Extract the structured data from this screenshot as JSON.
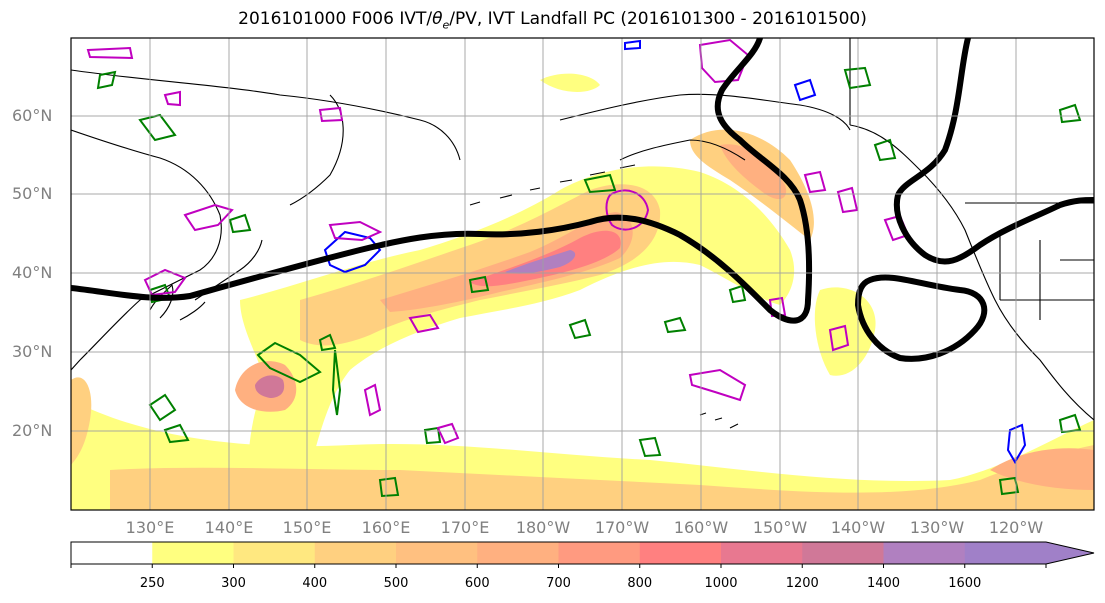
{
  "title_text": "2016101000 F006 IVT/θe/PV, IVT Landfall PC (2016101300 - 2016101500)",
  "title_parts": {
    "prefix": "2016101000 F006 IVT/",
    "theta": "θ",
    "theta_sub": "e",
    "suffix": "/PV, IVT Landfall PC (2016101300 - 2016101500)"
  },
  "map": {
    "projection": "equirectangular",
    "lon_range": [
      120,
      250
    ],
    "lat_range": [
      10,
      70
    ],
    "lat_ticks": [
      "60°N",
      "50°N",
      "40°N",
      "30°N",
      "20°N"
    ],
    "lon_ticks": [
      "130°E",
      "140°E",
      "150°E",
      "160°E",
      "170°E",
      "180°W",
      "170°W",
      "160°W",
      "150°W",
      "140°W",
      "130°W",
      "120°W"
    ],
    "gridlines": true,
    "coastline_color": "#000000",
    "contour_colors": {
      "theta_e": "#008000",
      "pv_low": "#0000ff",
      "pv_high": "#c000c0",
      "landfall_pc": "#000000"
    }
  },
  "colorbar": {
    "levels": [
      250,
      300,
      400,
      500,
      600,
      700,
      800,
      1000,
      1200,
      1400,
      1600
    ],
    "labels": [
      "250",
      "300",
      "400",
      "500",
      "600",
      "700",
      "800",
      "1000",
      "1200",
      "1400",
      "1600"
    ],
    "colors": [
      "#ffffff",
      "#ffff80",
      "#ffe880",
      "#ffd080",
      "#ffc080",
      "#ffb080",
      "#ff9a80",
      "#ff8080",
      "#e87890",
      "#d07898",
      "#b080c0",
      "#a080c8"
    ],
    "extend": "max"
  }
}
